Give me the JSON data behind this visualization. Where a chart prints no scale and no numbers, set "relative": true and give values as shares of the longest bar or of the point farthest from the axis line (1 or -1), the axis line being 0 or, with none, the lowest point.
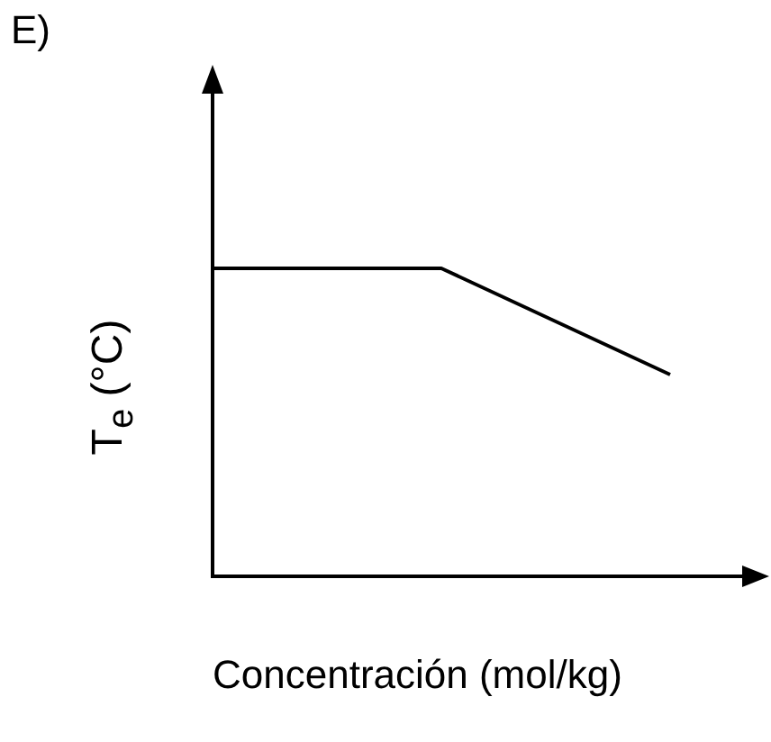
{
  "chart_data": {
    "type": "line",
    "title": "E)",
    "xlabel": "Concentración (mol/kg)",
    "ylabel": "T$_{e}$ (°C)",
    "categories": [
      null,
      null,
      null
    ],
    "relative": true,
    "series": [
      {
        "color": "#000000",
        "values": [
          1,
          1,
          0.655
        ]
      }
    ],
    "marker": "none",
    "grid": false,
    "legend": false,
    "tick_labels": false
  }
}
